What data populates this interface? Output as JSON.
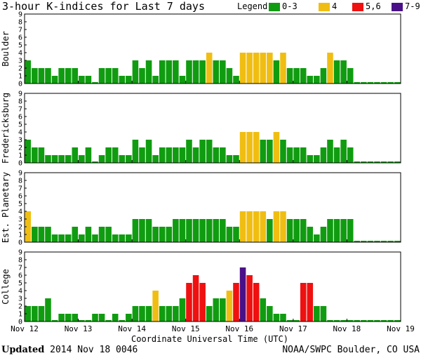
{
  "chart_data": {
    "type": "bar",
    "title": "3-hour K-indices for Last 7 days",
    "xlabel": "Coordinate Universal Time (UTC)",
    "ylim": [
      0,
      9
    ],
    "yticks": [
      "0",
      "1",
      "2",
      "3",
      "4",
      "5",
      "6",
      "7",
      "8",
      "9"
    ],
    "x_ticks": [
      "Nov 12",
      "Nov 13",
      "Nov 14",
      "Nov 15",
      "Nov 16",
      "Nov 17",
      "Nov 18",
      "Nov 19"
    ],
    "legend": {
      "label": "Legend:",
      "items": [
        {
          "label": "0-3",
          "color": "#109c10"
        },
        {
          "label": "4",
          "color": "#f0be12"
        },
        {
          "label": "5,6",
          "color": "#ef1010"
        },
        {
          "label": "7-9",
          "color": "#4a1088"
        }
      ]
    },
    "series": [
      {
        "name": "Boulder",
        "values": [
          3,
          2,
          2,
          2,
          1,
          2,
          2,
          2,
          1,
          1,
          0,
          2,
          2,
          2,
          1,
          1,
          3,
          2,
          3,
          1,
          3,
          3,
          3,
          1,
          3,
          3,
          3,
          4,
          3,
          3,
          2,
          1,
          4,
          4,
          4,
          4,
          4,
          3,
          4,
          2,
          2,
          2,
          1,
          1,
          2,
          4,
          3,
          3,
          2,
          0,
          0,
          0,
          0,
          0,
          0,
          0
        ]
      },
      {
        "name": "Fredericksburg",
        "values": [
          3,
          2,
          2,
          1,
          1,
          1,
          1,
          2,
          1,
          2,
          0,
          1,
          2,
          2,
          1,
          1,
          3,
          2,
          3,
          1,
          2,
          2,
          2,
          2,
          3,
          2,
          3,
          3,
          2,
          2,
          1,
          1,
          4,
          4,
          4,
          3,
          3,
          4,
          3,
          2,
          2,
          2,
          1,
          1,
          2,
          3,
          2,
          3,
          2,
          0,
          0,
          0,
          0,
          0,
          0,
          0
        ]
      },
      {
        "name": "Est. Planetary",
        "values": [
          4,
          2,
          2,
          2,
          1,
          1,
          1,
          2,
          1,
          2,
          1,
          2,
          2,
          1,
          1,
          1,
          3,
          3,
          3,
          2,
          2,
          2,
          3,
          3,
          3,
          3,
          3,
          3,
          3,
          3,
          2,
          2,
          4,
          4,
          4,
          4,
          3,
          4,
          4,
          3,
          3,
          3,
          2,
          1,
          2,
          3,
          3,
          3,
          3,
          0,
          0,
          0,
          0,
          0,
          0,
          0
        ]
      },
      {
        "name": "College",
        "values": [
          2,
          2,
          2,
          3,
          0,
          1,
          1,
          1,
          0,
          0,
          1,
          1,
          0,
          1,
          0,
          1,
          2,
          2,
          2,
          4,
          2,
          2,
          2,
          3,
          5,
          6,
          5,
          2,
          3,
          3,
          4,
          5,
          7,
          6,
          5,
          3,
          2,
          1,
          1,
          0,
          0,
          5,
          5,
          2,
          2,
          0,
          0,
          0,
          0,
          0,
          0,
          0,
          0,
          0,
          0,
          0
        ]
      }
    ]
  },
  "footer": {
    "updated_label": "Updated",
    "updated_value": "2014 Nov 18 0046",
    "credit": "NOAA/SWPC Boulder, CO USA"
  }
}
